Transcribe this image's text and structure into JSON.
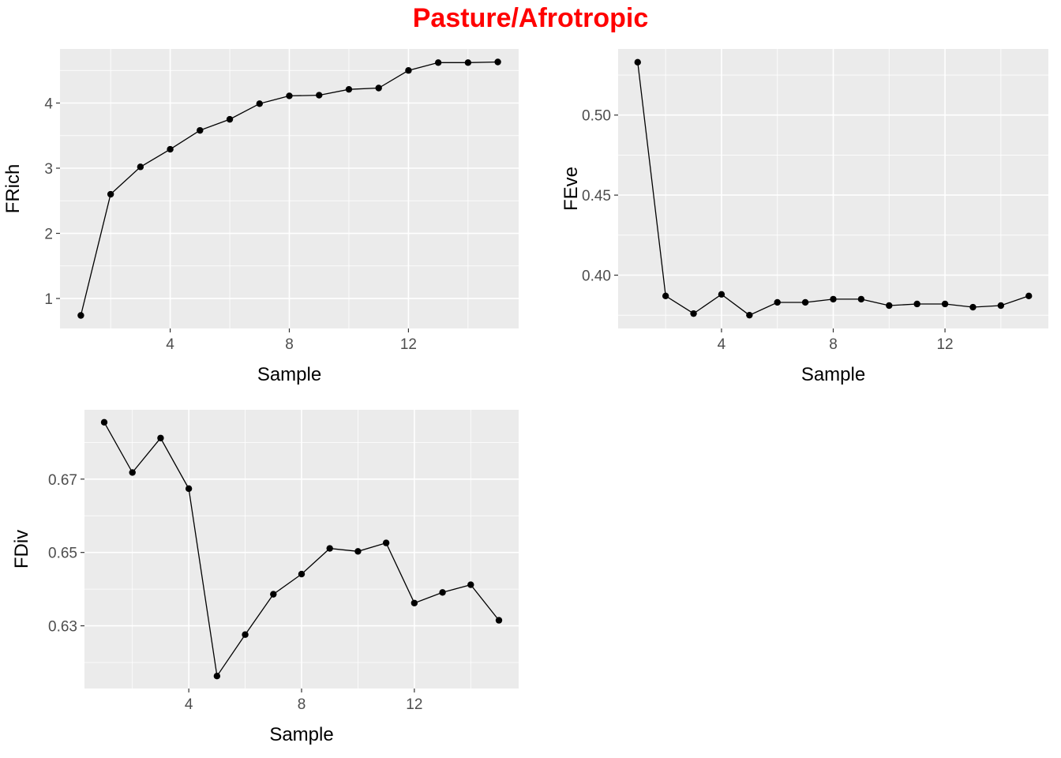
{
  "title": "Pasture/Afrotropic",
  "colors": {
    "title": "#FF0000",
    "panel_bg": "#EBEBEB",
    "grid": "#FFFFFF",
    "series": "#000000",
    "tick_text": "#4D4D4D"
  },
  "chart_data": [
    {
      "type": "line",
      "xlabel": "Sample",
      "ylabel": "FRich",
      "x": [
        1,
        2,
        3,
        4,
        5,
        6,
        7,
        8,
        9,
        10,
        11,
        12,
        13,
        14,
        15
      ],
      "values": [
        0.74,
        2.6,
        3.02,
        3.29,
        3.58,
        3.75,
        3.99,
        4.11,
        4.12,
        4.21,
        4.23,
        4.5,
        4.62,
        4.62,
        4.63
      ],
      "xlim": [
        0.3,
        15.7
      ],
      "ylim": [
        0.54,
        4.83
      ],
      "xticks": [
        4,
        8,
        12
      ],
      "xtick_labels": [
        "4",
        "8",
        "12"
      ],
      "yticks": [
        1,
        2,
        3,
        4
      ],
      "ytick_labels": [
        "1",
        "2",
        "3",
        "4"
      ],
      "grid": true,
      "markers": true
    },
    {
      "type": "line",
      "xlabel": "Sample",
      "ylabel": "FEve",
      "x": [
        1,
        2,
        3,
        4,
        5,
        6,
        7,
        8,
        9,
        10,
        11,
        12,
        13,
        14,
        15
      ],
      "values": [
        0.533,
        0.387,
        0.376,
        0.388,
        0.375,
        0.383,
        0.383,
        0.385,
        0.385,
        0.381,
        0.382,
        0.382,
        0.38,
        0.381,
        0.387
      ],
      "xlim": [
        0.3,
        15.7
      ],
      "ylim": [
        0.3667,
        0.5413
      ],
      "xticks": [
        4,
        8,
        12
      ],
      "xtick_labels": [
        "4",
        "8",
        "12"
      ],
      "yticks": [
        0.4,
        0.45,
        0.5
      ],
      "ytick_labels": [
        "0.40",
        "0.45",
        "0.50"
      ],
      "grid": true,
      "markers": true
    },
    {
      "type": "line",
      "xlabel": "Sample",
      "ylabel": "FDiv",
      "x": [
        1,
        2,
        3,
        4,
        5,
        6,
        7,
        8,
        9,
        10,
        11,
        12,
        13,
        14,
        15
      ],
      "values": [
        0.6855,
        0.6718,
        0.6812,
        0.6674,
        0.6163,
        0.6276,
        0.6386,
        0.6441,
        0.6511,
        0.6503,
        0.6526,
        0.6362,
        0.6391,
        0.6412,
        0.6315
      ],
      "xlim": [
        0.3,
        15.7
      ],
      "ylim": [
        0.6129,
        0.6889
      ],
      "xticks": [
        4,
        8,
        12
      ],
      "xtick_labels": [
        "4",
        "8",
        "12"
      ],
      "yticks": [
        0.63,
        0.65,
        0.67
      ],
      "ytick_labels": [
        "0.63",
        "0.65",
        "0.67"
      ],
      "grid": true,
      "markers": true
    }
  ]
}
